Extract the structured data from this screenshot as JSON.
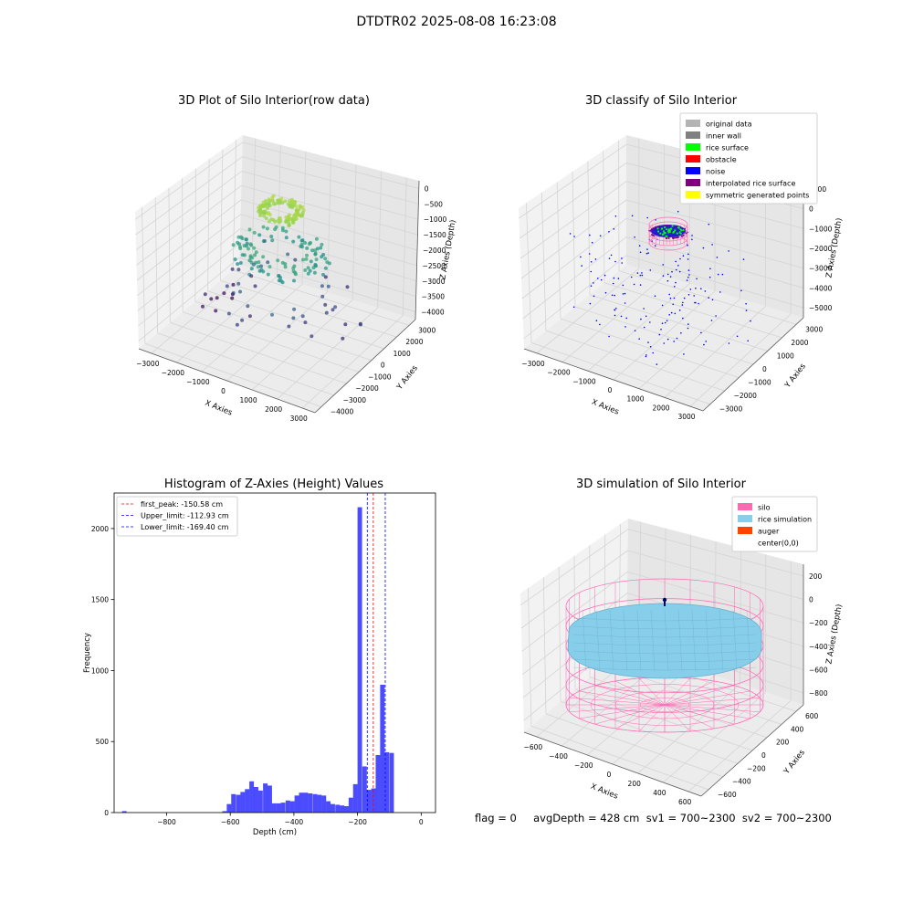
{
  "figure_title": "DTDTR02 2025-08-08 16:23:08",
  "status_line": "flag = 0     avgDepth = 428 cm  sv1 = 700~2300  sv2 = 700~2300",
  "chart_data": [
    {
      "type": "scatter",
      "title": "3D Plot of Silo Interior(row data)",
      "xlabel": "X Axies",
      "ylabel": "Y Axies",
      "zlabel": "Z Axies (Depth)",
      "x_ticks": [
        "−3000",
        "−2000",
        "−1000",
        "0",
        "1000",
        "2000",
        "3000"
      ],
      "y_ticks": [
        "−4000",
        "−3000",
        "−2000",
        "−1000",
        "0",
        "1000",
        "2000",
        "3000"
      ],
      "z_ticks": [
        "−4000",
        "−3500",
        "−3000",
        "−2500",
        "−2000",
        "−1500",
        "−1000",
        "−500",
        "0"
      ],
      "xlim": [
        -3200,
        3200
      ],
      "ylim": [
        -4200,
        3200
      ],
      "zlim": [
        -4200,
        200
      ],
      "colormap": "viridis"
    },
    {
      "type": "scatter",
      "title": "3D classify of Silo Interior",
      "xlabel": "X Axies",
      "ylabel": "Y Axies",
      "zlabel": "Z Axies (Depth)",
      "x_ticks": [
        "−3000",
        "−2000",
        "−1000",
        "0",
        "1000",
        "2000",
        "3000"
      ],
      "y_ticks": [
        "−3000",
        "−2000",
        "−1000",
        "0",
        "1000",
        "2000",
        "3000"
      ],
      "z_ticks": [
        "−5000",
        "−4000",
        "−3000",
        "−2000",
        "−1000",
        "0",
        "1000"
      ],
      "xlim": [
        -3200,
        3200
      ],
      "ylim": [
        -3200,
        3200
      ],
      "zlim": [
        -5200,
        1200
      ],
      "legend_position": "top-right",
      "legend": [
        {
          "label": "original data",
          "color": "#b4b4b4"
        },
        {
          "label": "inner wall",
          "color": "#808080"
        },
        {
          "label": "rice surface",
          "color": "#00ff00"
        },
        {
          "label": "obstacle",
          "color": "#ff0000"
        },
        {
          "label": "noise",
          "color": "#0000ff"
        },
        {
          "label": "interpolated rice surface",
          "color": "#800080"
        },
        {
          "label": "symmetric generated points",
          "color": "#ffff00"
        }
      ]
    },
    {
      "type": "bar",
      "title": "Histogram of Z-Axies (Height) Values",
      "xlabel": "Depth (cm)",
      "ylabel": "Frequency",
      "xlim": [
        -965,
        45
      ],
      "ylim": [
        0,
        2250
      ],
      "x_ticks": [
        -800,
        -600,
        -400,
        -200,
        0
      ],
      "x_tick_labels": [
        "−800",
        "−600",
        "−400",
        "−200",
        "0"
      ],
      "y_ticks": [
        0,
        500,
        1000,
        1500,
        2000
      ],
      "y_tick_labels": [
        "0",
        "500",
        "1000",
        "1500",
        "2000"
      ],
      "bar_color": "#0000ff",
      "bin_width": 14.2,
      "bin_starts": [
        -940,
        -625,
        -611,
        -597,
        -582,
        -568,
        -554,
        -540,
        -526,
        -512,
        -497,
        -483,
        -469,
        -455,
        -441,
        -426,
        -412,
        -398,
        -384,
        -370,
        -356,
        -341,
        -327,
        -313,
        -299,
        -285,
        -270,
        -256,
        -242,
        -228,
        -214,
        -200,
        -185,
        -171,
        -157,
        -143,
        -129,
        -115,
        -100,
        -86,
        -72,
        -58,
        -44,
        -30,
        -16
      ],
      "values": [
        10,
        10,
        60,
        130,
        125,
        145,
        165,
        220,
        180,
        155,
        205,
        190,
        65,
        65,
        70,
        85,
        80,
        120,
        140,
        140,
        135,
        130,
        125,
        120,
        80,
        60,
        55,
        50,
        45,
        105,
        200,
        2150,
        325,
        160,
        170,
        405,
        900,
        425,
        420,
        0,
        0,
        0,
        0,
        0,
        0
      ],
      "legend_position": "top-left",
      "reference_lines": [
        {
          "label": "first_peak: -150.58 cm",
          "x": -150.58,
          "color": "#ff0000"
        },
        {
          "label": "Upper_limit: -112.93 cm",
          "x": -112.93,
          "color": "#0000ff"
        },
        {
          "label": "Lower_limit: -169.40 cm",
          "x": -169.4,
          "color": "#0000ff"
        }
      ]
    },
    {
      "type": "surface",
      "title": "3D simulation of Silo Interior",
      "xlabel": "X Axies",
      "ylabel": "Y Axies",
      "zlabel": "Z Axies (Depth)",
      "x_ticks": [
        "−600",
        "−400",
        "−200",
        "0",
        "200",
        "400",
        "600"
      ],
      "y_ticks": [
        "−600",
        "−400",
        "−200",
        "0",
        "200",
        "400",
        "600"
      ],
      "z_ticks": [
        "−800",
        "−600",
        "−400",
        "−200",
        "0",
        "200"
      ],
      "xlim": [
        -650,
        650
      ],
      "ylim": [
        -650,
        650
      ],
      "zlim": [
        -900,
        300
      ],
      "legend_position": "top-right",
      "legend": [
        {
          "label": "silo",
          "color": "#ff69b4"
        },
        {
          "label": "rice simulation",
          "color": "#87ceeb"
        },
        {
          "label": "auger",
          "color": "#ff4500"
        },
        {
          "label": "center(0,0)",
          "color": "#ffffff"
        }
      ]
    }
  ]
}
